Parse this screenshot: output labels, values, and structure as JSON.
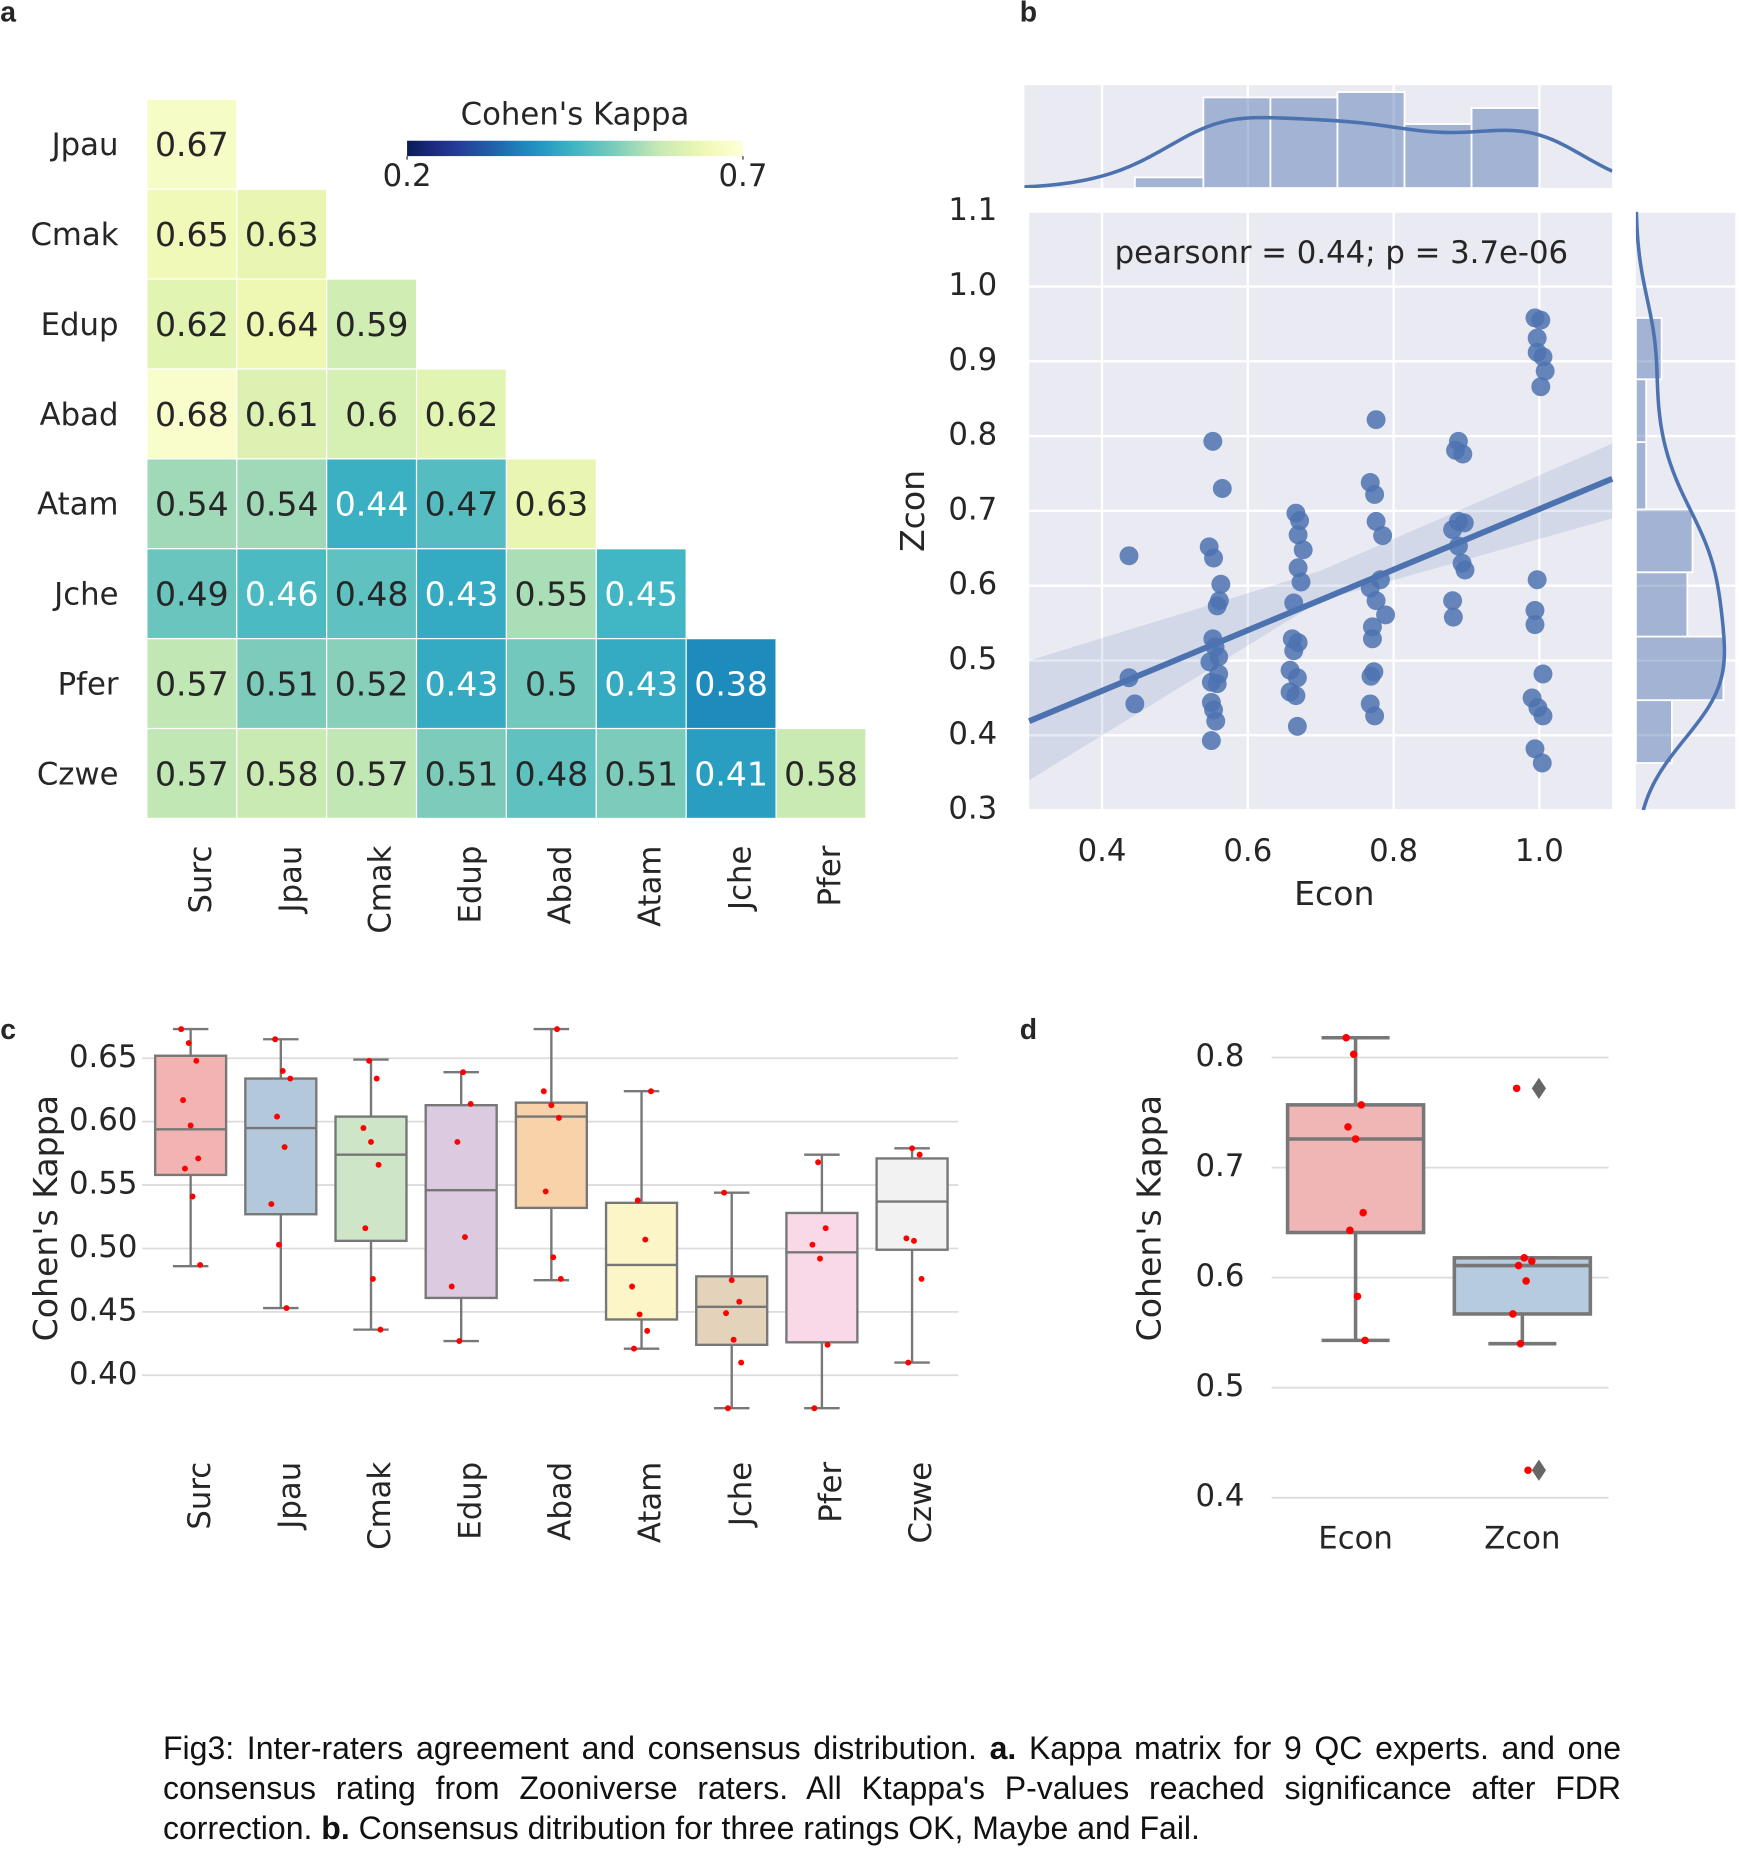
{
  "caption": {
    "segments": [
      {
        "text": "Fig3: Inter-raters agreement and consensus distribution. ",
        "bold": false
      },
      {
        "text": "a.",
        "bold": true
      },
      {
        "text": " Kappa matrix for 9 QC experts. and one consensus rating from Zooniverse raters. All Ktappa's P-values reached significance after FDR correction. ",
        "bold": false
      },
      {
        "text": "b.",
        "bold": true
      },
      {
        "text": " Consensus ditribution for three ratings OK, Maybe and   Fail.",
        "bold": false
      }
    ]
  },
  "chart_data": [
    {
      "type": "heatmap",
      "panel_label": "a",
      "rows": [
        "Jpau",
        "Cmak",
        "Edup",
        "Abad",
        "Atam",
        "Jche",
        "Pfer",
        "Czwe"
      ],
      "columns": [
        "Surc",
        "Jpau",
        "Cmak",
        "Edup",
        "Abad",
        "Atam",
        "Jche",
        "Pfer"
      ],
      "values": [
        [
          0.67
        ],
        [
          0.65,
          0.63
        ],
        [
          0.62,
          0.64,
          0.59
        ],
        [
          0.68,
          0.61,
          0.6,
          0.62
        ],
        [
          0.54,
          0.54,
          0.44,
          0.47,
          0.63
        ],
        [
          0.49,
          0.46,
          0.48,
          0.43,
          0.55,
          0.45
        ],
        [
          0.57,
          0.51,
          0.52,
          0.43,
          0.5,
          0.43,
          0.38
        ],
        [
          0.57,
          0.58,
          0.57,
          0.51,
          0.48,
          0.51,
          0.41,
          0.58
        ]
      ],
      "colormap": "YlGnBu_r",
      "colorbar_title": "Cohen's Kappa",
      "clim": [
        0.2,
        0.7
      ],
      "cticks": [
        0.2,
        0.7
      ]
    },
    {
      "type": "jointplot",
      "panel_label": "b",
      "annotation": "pearsonr = 0.44; p = 3.7e-06",
      "x_label": "Econ",
      "y_label": "Zcon",
      "color": "#4c72b0",
      "x": [
        0.437,
        0.437,
        0.445,
        0.552,
        0.565,
        0.547,
        0.553,
        0.563,
        0.561,
        0.558,
        0.552,
        0.555,
        0.56,
        0.548,
        0.56,
        0.55,
        0.558,
        0.55,
        0.553,
        0.556,
        0.55,
        0.666,
        0.671,
        0.669,
        0.676,
        0.669,
        0.673,
        0.663,
        0.661,
        0.669,
        0.663,
        0.658,
        0.668,
        0.658,
        0.666,
        0.668,
        0.776,
        0.768,
        0.774,
        0.776,
        0.785,
        0.782,
        0.768,
        0.776,
        0.789,
        0.771,
        0.771,
        0.773,
        0.769,
        0.768,
        0.774,
        0.889,
        0.885,
        0.895,
        0.889,
        0.897,
        0.881,
        0.889,
        0.894,
        0.898,
        0.881,
        0.882,
        0.994,
        1.002,
        0.997,
        0.997,
        1.005,
        1.008,
        1.002,
        0.997,
        0.994,
        0.994,
        1.005,
        0.99,
        0.998,
        1.005,
        0.994,
        1.004
      ],
      "y": [
        0.64,
        0.477,
        0.442,
        0.793,
        0.73,
        0.652,
        0.637,
        0.602,
        0.58,
        0.573,
        0.529,
        0.518,
        0.505,
        0.498,
        0.482,
        0.471,
        0.469,
        0.444,
        0.434,
        0.419,
        0.393,
        0.697,
        0.687,
        0.668,
        0.648,
        0.624,
        0.605,
        0.577,
        0.529,
        0.524,
        0.513,
        0.487,
        0.477,
        0.458,
        0.453,
        0.412,
        0.822,
        0.738,
        0.722,
        0.686,
        0.667,
        0.608,
        0.597,
        0.58,
        0.561,
        0.545,
        0.529,
        0.485,
        0.479,
        0.442,
        0.426,
        0.793,
        0.781,
        0.776,
        0.686,
        0.684,
        0.675,
        0.653,
        0.63,
        0.621,
        0.58,
        0.558,
        0.958,
        0.955,
        0.931,
        0.912,
        0.906,
        0.887,
        0.866,
        0.608,
        0.567,
        0.548,
        0.482,
        0.45,
        0.437,
        0.426,
        0.382,
        0.363
      ],
      "xlim": [
        0.3,
        1.1
      ],
      "ylim": [
        0.3,
        1.1
      ],
      "xticks": [
        0.4,
        0.6,
        0.8,
        {
          "value": 1,
          "label": "1.0"
        }
      ],
      "yticks": [
        0.3,
        0.4,
        0.5,
        0.6,
        0.7,
        0.8,
        0.9,
        {
          "value": 1,
          "label": "1.0"
        },
        1.1
      ],
      "regression": {
        "x": [
          0.3,
          1.1
        ],
        "y": [
          0.419,
          0.743
        ]
      },
      "ci_band": {
        "x": [
          0.3,
          0.7,
          1.1
        ],
        "lower": [
          0.34,
          0.58,
          0.69
        ],
        "upper": [
          0.5,
          0.62,
          0.79
        ]
      },
      "x_hist": {
        "bins": [
          0.445,
          0.539,
          0.631,
          0.723,
          0.815,
          0.907,
          1.0
        ],
        "counts": [
          2,
          17,
          17,
          18,
          12,
          15
        ],
        "count_lim": [
          0,
          19.3
        ]
      },
      "y_hist": {
        "bins": [
          0.363,
          0.447,
          0.532,
          0.618,
          0.702,
          0.792,
          0.876,
          0.958
        ],
        "counts": [
          7,
          17,
          10,
          11,
          2,
          2,
          5
        ],
        "count_lim": [
          0,
          19.3
        ]
      },
      "grid": true
    },
    {
      "type": "box",
      "panel_label": "c",
      "y_label": "Cohen's Kappa",
      "categories": [
        "Surc",
        "Jpau",
        "Cmak",
        "Edup",
        "Abad",
        "Atam",
        "Jche",
        "Pfer",
        "Czwe"
      ],
      "colors": [
        "#f2b3b3",
        "#b4c8dc",
        "#cfe5c8",
        "#dccbe0",
        "#f8d2a9",
        "#fbf5c8",
        "#e4d3bb",
        "#f9d8e7",
        "#f2f2f2"
      ],
      "stats": [
        [
          0.486,
          0.558,
          0.594,
          0.652,
          0.673
        ],
        [
          0.453,
          0.527,
          0.595,
          0.634,
          0.665
        ],
        [
          0.436,
          0.506,
          0.574,
          0.604,
          0.649
        ],
        [
          0.427,
          0.461,
          0.546,
          0.613,
          0.639
        ],
        [
          0.475,
          0.532,
          0.604,
          0.615,
          0.673
        ],
        [
          0.421,
          0.444,
          0.487,
          0.536,
          0.624
        ],
        [
          0.374,
          0.424,
          0.454,
          0.478,
          0.544
        ],
        [
          0.374,
          0.426,
          0.497,
          0.528,
          0.574
        ],
        [
          0.41,
          0.499,
          0.537,
          0.571,
          0.579
        ]
      ],
      "points": [
        [
          0.673,
          0.662,
          0.648,
          0.617,
          0.597,
          0.571,
          0.563,
          0.541,
          0.487
        ],
        [
          0.665,
          0.64,
          0.634,
          0.604,
          0.58,
          0.535,
          0.503,
          0.453
        ],
        [
          0.648,
          0.634,
          0.595,
          0.584,
          0.566,
          0.516,
          0.476,
          0.436
        ],
        [
          0.639,
          0.614,
          0.584,
          0.509,
          0.47,
          0.427
        ],
        [
          0.673,
          0.624,
          0.613,
          0.603,
          0.545,
          0.493,
          0.476
        ],
        [
          0.624,
          0.538,
          0.507,
          0.47,
          0.448,
          0.435,
          0.421
        ],
        [
          0.544,
          0.475,
          0.458,
          0.449,
          0.428,
          0.41,
          0.374
        ],
        [
          0.568,
          0.516,
          0.503,
          0.492,
          0.424,
          0.374
        ],
        [
          0.579,
          0.574,
          0.508,
          0.506,
          0.476,
          0.41
        ]
      ],
      "point_color": "#ff0000",
      "ylim": [
        0.37,
        0.675
      ],
      "yticks": [
        {
          "value": 0.4,
          "label": "0.40"
        },
        0.45,
        {
          "value": 0.5,
          "label": "0.50"
        },
        0.55,
        {
          "value": 0.6,
          "label": "0.60"
        },
        0.65
      ],
      "grid": true
    },
    {
      "type": "box",
      "panel_label": "d",
      "y_label": "Cohen's Kappa",
      "categories": [
        "Econ",
        "Zcon"
      ],
      "colors": [
        "#f0b6b6",
        "#b6cbe0"
      ],
      "stats": [
        [
          0.543,
          0.641,
          0.726,
          0.757,
          0.818
        ],
        [
          0.54,
          0.567,
          0.611,
          0.618,
          0.618
        ]
      ],
      "points": [
        [
          0.818,
          0.803,
          0.757,
          0.737,
          0.726,
          0.659,
          0.643,
          0.583,
          0.543
        ],
        [
          0.772,
          0.618,
          0.615,
          0.611,
          0.597,
          0.567,
          0.54,
          0.425
        ]
      ],
      "outliers": [
        [],
        [
          0.772,
          0.425
        ]
      ],
      "point_color": "#ff0000",
      "ylim": [
        0.38,
        0.826
      ],
      "yticks": [
        0.4,
        0.5,
        0.6,
        0.7,
        0.8
      ],
      "grid": true
    }
  ]
}
